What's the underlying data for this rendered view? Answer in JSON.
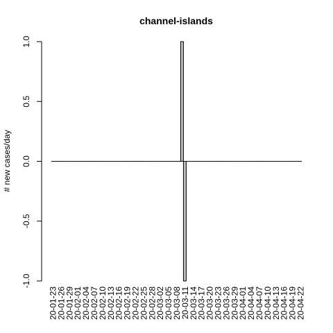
{
  "chart_data": {
    "type": "bar",
    "title": "channel-islands",
    "xlabel": "",
    "ylabel": "# new cases/day",
    "ylim": [
      -1.0,
      1.0
    ],
    "y_ticks": [
      -1.0,
      -0.5,
      0.0,
      0.5,
      1.0
    ],
    "y_tick_labels": [
      "-1.0",
      "-0.5",
      "0.0",
      "0.5",
      "1.0"
    ],
    "x_tick_labels": [
      "20-01-23",
      "20-01-26",
      "20-01-29",
      "20-02-01",
      "20-02-04",
      "20-02-07",
      "20-02-10",
      "20-02-13",
      "20-02-16",
      "20-02-19",
      "20-02-22",
      "20-02-25",
      "20-02-28",
      "20-03-02",
      "20-03-05",
      "20-03-08",
      "20-03-11",
      "20-03-14",
      "20-03-17",
      "20-03-20",
      "20-03-23",
      "20-03-26",
      "20-03-29",
      "20-04-01",
      "20-04-04",
      "20-04-07",
      "20-04-10",
      "20-04-13",
      "20-04-16",
      "20-04-19",
      "20-04-22"
    ],
    "start_date": "2020-01-23",
    "end_date": "2020-04-22",
    "nonzero_values": [
      {
        "date": "20-03-10",
        "value": 1
      },
      {
        "date": "20-03-11",
        "value": -1
      }
    ],
    "default_value": 0,
    "bar_fill": "#bebebe",
    "bar_stroke": "#000000",
    "grid": false,
    "legend": "none"
  }
}
